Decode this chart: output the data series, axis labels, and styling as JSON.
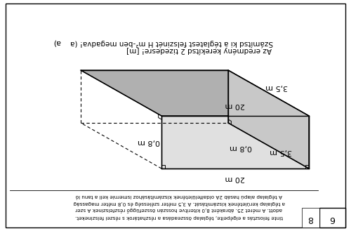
{
  "fig_width": 5.0,
  "fig_height": 3.29,
  "dpi": 100,
  "background_color": "#ffffff",
  "box_top_color": "#b0b0b0",
  "box_front_color": "#e0e0e0",
  "box_right_color": "#c8c8c8",
  "box_edge_color": "#000000",
  "dim_20m": "20 m",
  "dim_35m": "3,5 m",
  "dim_08m": "0,8 m",
  "footer_lines": [
    "A téglalap alapú hasáb 2A oldalfelületének kiszámításához ismernie kell a tanu ló",
    "a téglalap kerületének kiszámítását. A 3,5 méter szélesség és 0,8 méter magasság",
    "adott. A méret 25. ábraként 8,0 kiterítve hosszán összefüggő részfelszinek A szer",
    "tinte felosztás a elgépelte, téglalap összeadása a részhatárok s részei felszineket."
  ],
  "question_a_label": "a)",
  "question_a_text": "Számítsd ki a téglatest felszinét H m²-ben megadva! (a",
  "note_text": "Az eredmény kerekítsd 2 tizedesre! [m]",
  "page_num": "6",
  "task_num": "8",
  "label_rot": 180,
  "border_lw": 1.0
}
